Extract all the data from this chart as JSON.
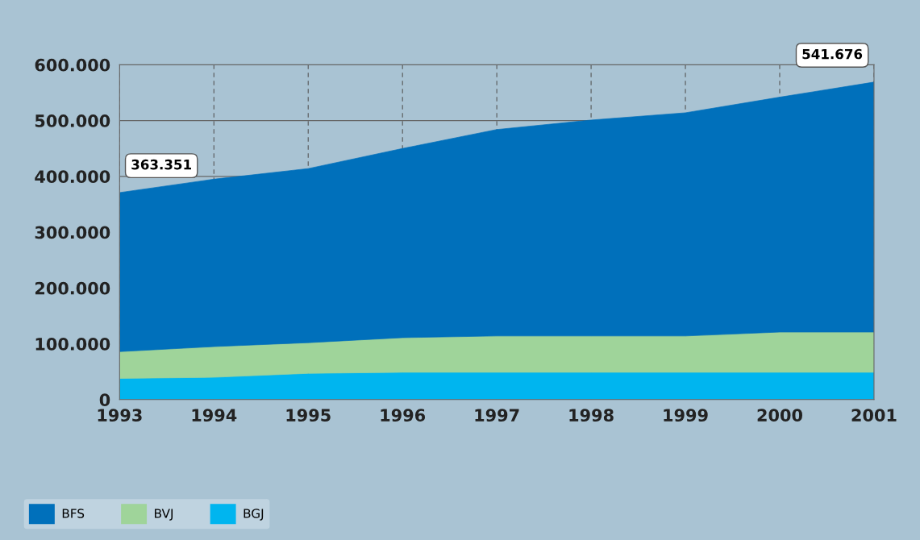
{
  "chart_data": {
    "type": "area",
    "stacked": true,
    "x": [
      1993,
      1994,
      1995,
      1996,
      1997,
      1998,
      1999,
      2000,
      2001
    ],
    "series": [
      {
        "name": "BGJ",
        "color": "#00b5ef",
        "values": [
          38000,
          40000,
          47000,
          49000,
          49000,
          49000,
          49000,
          49000,
          49000
        ]
      },
      {
        "name": "BVJ",
        "color": "#9fd49a",
        "values": [
          48000,
          55000,
          55000,
          62000,
          65000,
          65000,
          65000,
          72000,
          72000
        ]
      },
      {
        "name": "BFS",
        "color": "#0070bb",
        "values": [
          285000,
          300000,
          312000,
          339000,
          370000,
          387000,
          400000,
          421000,
          448000
        ]
      }
    ],
    "xlim": [
      1993,
      2001
    ],
    "xticks": [
      1993,
      1994,
      1995,
      1996,
      1997,
      1998,
      1999,
      2000,
      2001
    ],
    "ylim": [
      0,
      600000
    ],
    "yticks": [
      0,
      {
        "value": 100000,
        "label": "100.000"
      },
      {
        "value": 200000,
        "label": "200.000"
      },
      {
        "value": 300000,
        "label": "300.000"
      },
      {
        "value": 400000,
        "label": "400.000"
      },
      {
        "value": 500000,
        "label": "500.000"
      },
      {
        "value": 600000,
        "label": "600.000"
      }
    ],
    "annotations": [
      {
        "text": "363.351",
        "x": 1993,
        "y": 371000
      },
      {
        "text": "541.676",
        "x": 2001,
        "y": 569000
      }
    ],
    "grid": true,
    "legend": "bottom"
  }
}
